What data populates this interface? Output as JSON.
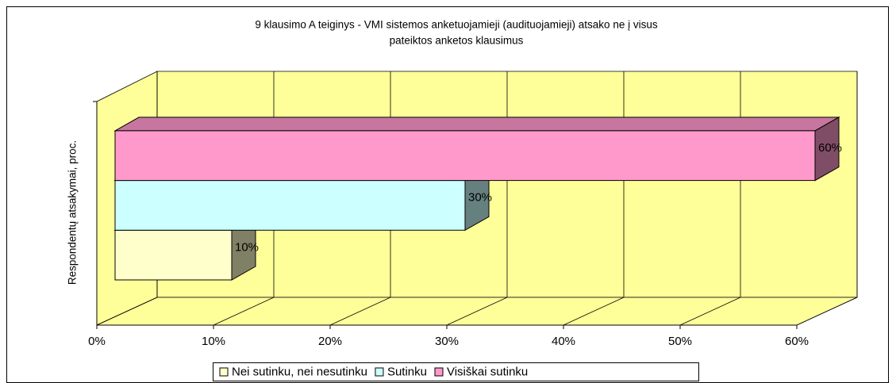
{
  "chart_data": {
    "type": "bar",
    "orientation": "horizontal",
    "title": [
      "9 klausimo A  teiginys - VMI sistemos anketuojamieji (audituojamieji) atsako ne į visus",
      "pateiktos anketos klausimus"
    ],
    "y_label": "Respondentų atsakymai, proc.",
    "series": [
      {
        "name": "Nei sutinku, nei nesutinku",
        "color": "#ffffcc",
        "values": [
          10
        ],
        "value_labels": [
          "10%"
        ]
      },
      {
        "name": "Sutinku",
        "color": "#ccffff",
        "values": [
          30
        ],
        "value_labels": [
          "30%"
        ]
      },
      {
        "name": "Visiškai sutinku",
        "color": "#ff99cc",
        "values": [
          60
        ],
        "value_labels": [
          "60%"
        ]
      }
    ],
    "xlim": [
      0,
      60
    ],
    "xticks": [
      {
        "value": 0,
        "label": "0%"
      },
      {
        "value": 10,
        "label": "10%"
      },
      {
        "value": 20,
        "label": "20%"
      },
      {
        "value": 30,
        "label": "30%"
      },
      {
        "value": 40,
        "label": "40%"
      },
      {
        "value": 50,
        "label": "50%"
      },
      {
        "value": 60,
        "label": "60%"
      }
    ],
    "grid": true,
    "wall_color": "#ffff99",
    "legend": "bottom"
  }
}
